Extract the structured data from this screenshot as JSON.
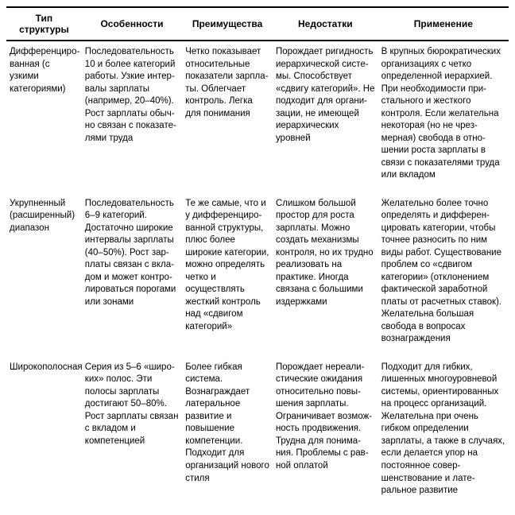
{
  "table": {
    "headers": {
      "type": "Тип структуры",
      "features": "Особенности",
      "advantages": "Преимущества",
      "disadvantages": "Недостатки",
      "application": "Применение"
    },
    "rows": [
      {
        "type": "Дифференциро­ванная (с узкими категориями)",
        "features": "Последовательность 10 и более категорий работы. Узкие интер­валы зарплаты (например, 20–40%). Рост зарплаты обыч­но связан с показате­лями труда",
        "advantages": "Четко показывает относительные показатели зарпла­ты. Облегчает конт­роль. Легка для понимания",
        "disadvantages": "Порождает ригидность иерархической систе­мы. Способствует «сдвигу категорий». Не подходит для органи­зации, не имеющей иерархических уровней",
        "application": "В крупных бюрократиче­ских организациях с четко определенной иерархией. При необходимости при­стального и жесткого контроля. Если желатель­на некоторая (но не чрез­мерная) свобода в отно­шении роста зарплаты в связи с показателями труда или вкладом"
      },
      {
        "type": "Укрупненный (расширенный) диапазон",
        "features": "Последовательность 6–9 категорий. Достаточно широкие интервалы зарплаты (40–50%). Рост зар­платы связан с вкла­дом и может контро­лироваться порогами или зонами",
        "advantages": "Те же самые, что и у дифференциро­ванной структуры, плюс более широкие категории, можно определять четко и осуществлять жесткий контроль над «сдвигом категорий»",
        "disadvantages": "Слишком большой простор для роста зарплаты. Можно создать механизмы контроля, но их труд­но реализовать на практике. Иногда связана с большими издержками",
        "application": "Желательно более точно определять и дифферен­цировать категории, чтобы точнее разносить по ним виды работ. Существование проблем со «сдвигом категории» (отклонением фактиче­ской заработной платы от расчетных ставок). Желательна большая свобода в вопросах вознаграждения"
      },
      {
        "type": "Широкополосная",
        "features": "Серия из 5–6 «широ­ких» полос. Эти полосы зарплаты достигают 50–80%. Рост зарплаты связан с вкладом и компетенцией",
        "advantages": "Более гибкая систе­ма. Вознаграждает латеральное разви­тие и повышение компетенции. Подхо­дит для организаций нового стиля",
        "disadvantages": "Порождает нереали­стические ожидания относительно повы­шения зарплаты. Ограничивает возмож­ность продвижения. Трудна для понима­ния. Проблемы с рав­ной оплатой",
        "application": "Подходит для гибких, лишенных многоуровне­вой системы, ориентиро­ванных на процесс орга­низаций. Желательна при очень гибком определе­нии зарплаты, а также в случаях, если делается упор на постоянное совер­шенствование и лате­ральное развитие"
      }
    ]
  }
}
